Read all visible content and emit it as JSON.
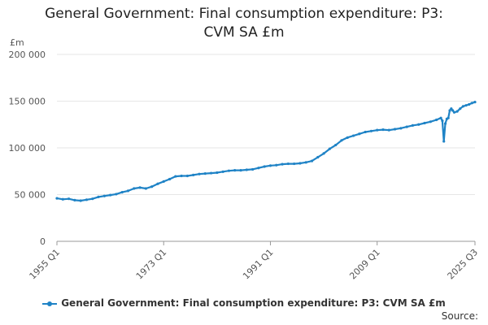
{
  "chart_data": {
    "type": "line",
    "title_lines": [
      "General Government: Final consumption expenditure: P3:",
      "CVM SA £m"
    ],
    "ylabel": "£m",
    "ylim": [
      0,
      200000
    ],
    "yticks": [
      0,
      50000,
      100000,
      150000,
      200000
    ],
    "ytick_labels": [
      "0",
      "50 000",
      "100 000",
      "150 000",
      "200 000"
    ],
    "xlim": [
      1955.0,
      2025.5
    ],
    "xticks": [
      1955.0,
      1973.0,
      1991.0,
      2009.0,
      2025.5
    ],
    "xtick_labels": [
      "1955 Q1",
      "1973 Q1",
      "1991 Q1",
      "2009 Q1",
      "2025 Q3"
    ],
    "grid": true,
    "legend_position": "bottom",
    "source_label": "Source:",
    "series": [
      {
        "name": "General Government: Final consumption expenditure: P3: CVM SA £m",
        "color": "#1f83c6",
        "x": [
          1955.0,
          1956.0,
          1957.0,
          1958.0,
          1959.0,
          1960.0,
          1961.0,
          1962.0,
          1963.0,
          1964.0,
          1965.0,
          1966.0,
          1967.0,
          1968.0,
          1969.0,
          1970.0,
          1971.0,
          1972.0,
          1973.0,
          1974.0,
          1975.0,
          1976.0,
          1977.0,
          1978.0,
          1979.0,
          1980.0,
          1981.0,
          1982.0,
          1983.0,
          1984.0,
          1985.0,
          1986.0,
          1987.0,
          1988.0,
          1989.0,
          1990.0,
          1991.0,
          1992.0,
          1993.0,
          1994.0,
          1995.0,
          1996.0,
          1997.0,
          1998.0,
          1999.0,
          2000.0,
          2001.0,
          2002.0,
          2003.0,
          2004.0,
          2005.0,
          2006.0,
          2007.0,
          2008.0,
          2009.0,
          2010.0,
          2011.0,
          2012.0,
          2013.0,
          2014.0,
          2015.0,
          2016.0,
          2017.0,
          2018.0,
          2019.0,
          2019.75,
          2020.0,
          2020.25,
          2020.5,
          2020.75,
          2021.0,
          2021.25,
          2021.5,
          2021.75,
          2022.0,
          2022.5,
          2023.0,
          2023.5,
          2024.0,
          2024.5,
          2025.0,
          2025.5
        ],
        "values": [
          46000,
          45000,
          45500,
          44000,
          43500,
          44500,
          45500,
          47500,
          48500,
          49500,
          50500,
          52500,
          54000,
          56500,
          57500,
          56500,
          58500,
          61500,
          64000,
          66500,
          69500,
          70000,
          70000,
          71000,
          72000,
          72500,
          73000,
          73500,
          74500,
          75500,
          76000,
          76000,
          76500,
          77000,
          78500,
          80000,
          81000,
          81500,
          82500,
          83000,
          83000,
          83500,
          84500,
          86000,
          90000,
          94000,
          99000,
          103000,
          108000,
          111000,
          113000,
          115000,
          117000,
          118000,
          119000,
          119500,
          119000,
          120000,
          121000,
          122500,
          124000,
          125000,
          126500,
          128000,
          130000,
          132000,
          129000,
          107000,
          126000,
          131000,
          132000,
          140000,
          142000,
          140000,
          138000,
          139000,
          142000,
          144500,
          145500,
          146500,
          148000,
          149000
        ]
      }
    ]
  }
}
